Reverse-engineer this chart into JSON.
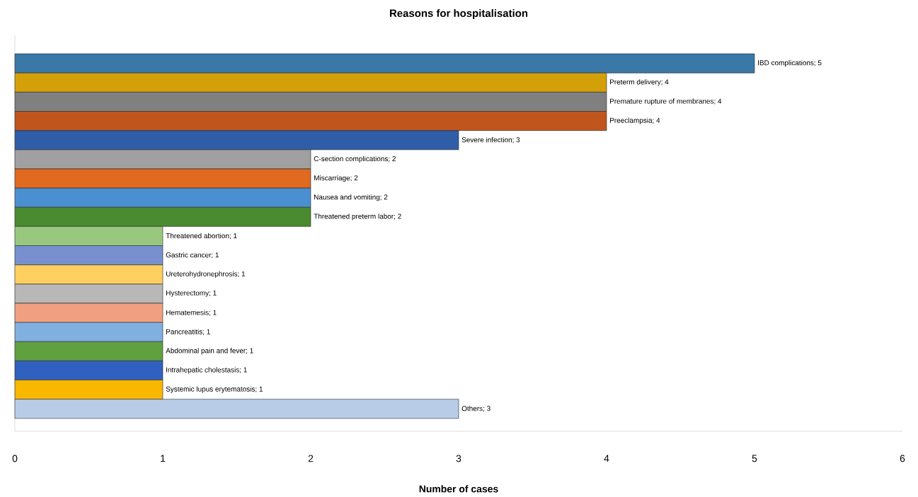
{
  "chart_data": {
    "type": "bar",
    "orientation": "horizontal",
    "title": "Reasons for hospitalisation",
    "xlabel": "Number of cases",
    "categories": [
      null,
      null,
      null,
      null,
      null,
      null,
      null,
      null,
      null,
      null,
      null,
      null,
      null,
      null,
      null,
      null,
      null,
      null,
      null
    ],
    "values": [
      5,
      4,
      4,
      4,
      3,
      2,
      2,
      2,
      2,
      1,
      1,
      1,
      1,
      1,
      1,
      1,
      1,
      1,
      3
    ],
    "value_labels": [
      "IBD complications; 5",
      "Preterm delivery; 4",
      "Premature rupture of membranes; 4",
      "Preeclampsia; 4",
      "Severe infection; 3",
      "C-section complications; 2",
      "Miscarriage; 2",
      "Nausea and vomiting; 2",
      "Threatened preterm labor; 2",
      "Threatened abortion; 1",
      "Gastric cancer; 1",
      "Ureterohydronephrosis; 1",
      "Hysterectomy; 1",
      "Hematemesis; 1",
      "Pancreatitis; 1",
      "Abdominal pain and fever; 1",
      "Intrahepatic cholestasis; 1",
      "Systemic lupus erytematosis; 1",
      "Others; 3"
    ],
    "colors": [
      "#3a78a8",
      "#d4a00a",
      "#808080",
      "#c0561e",
      "#2f5da8",
      "#a0a0a0",
      "#e06a20",
      "#4a8fd0",
      "#4a8a30",
      "#98c880",
      "#7890d0",
      "#ffd060",
      "#b8b8b8",
      "#f0a080",
      "#80b0e0",
      "#60a040",
      "#3060c0",
      "#f8b800",
      "#b8cce8"
    ],
    "xlim": [
      0,
      6
    ],
    "xticks": [
      0,
      1,
      2,
      3,
      4,
      5,
      6
    ]
  }
}
